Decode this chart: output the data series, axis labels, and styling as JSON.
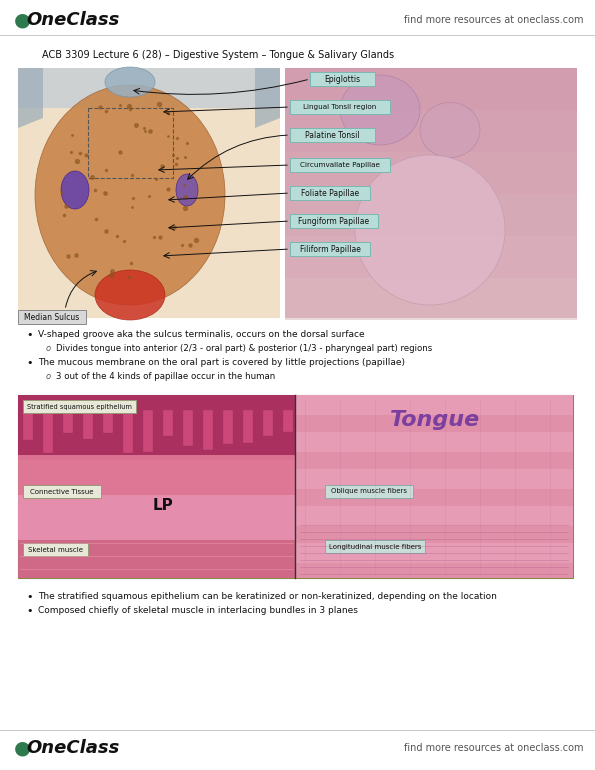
{
  "bg_color": "#ffffff",
  "header_right_text": "find more resources at oneclass.com",
  "footer_right_text": "find more resources at oneclass.com",
  "lecture_title": "ACB 3309 Lecture 6 (28) – Digestive System – Tongue & Salivary Glands",
  "bullet_points": [
    {
      "level": 1,
      "text": "V-shaped groove aka the sulcus terminalis, occurs on the dorsal surface"
    },
    {
      "level": 2,
      "text": "Divides tongue into anterior (2/3 - oral part) & posterior (1/3 - pharyngeal part) regions"
    },
    {
      "level": 1,
      "text": "The mucous membrane on the oral part is covered by little projections (papillae)"
    },
    {
      "level": 2,
      "text": "3 out of the 4 kinds of papillae occur in the human"
    }
  ],
  "bullet_points2": [
    {
      "level": 1,
      "text": "The stratified squamous epithelium can be keratinized or non-keratinized, depending on the location"
    },
    {
      "level": 1,
      "text": "Composed chiefly of skeletal muscle in interlacing bundles in 3 planes"
    }
  ],
  "logo_color": "#2d7a4f",
  "tongue_label_color": "#7B3FA0",
  "label_box_color": "#b8ddd8",
  "label_box_edge": "#7ab8b0",
  "median_box_color": "#d8d8d8",
  "median_box_edge": "#888888",
  "oblique_box_color": "#c8ddd8",
  "oblique_box_edge": "#8aaba8",
  "tongue_img_colors": {
    "left_bg": "#f0c888",
    "left_tongue_body": "#d4956a",
    "left_tongue_red": "#cc3322",
    "left_gray_top": "#a8b8c8",
    "left_purple": "#7755aa",
    "right_bg": "#e8c0c8"
  },
  "micro_img_colors": {
    "bg": "#e07890",
    "left_dark_pink": "#c8507a",
    "left_medium": "#e080a0",
    "right_lighter": "#e898b0",
    "separator": "#222222"
  }
}
